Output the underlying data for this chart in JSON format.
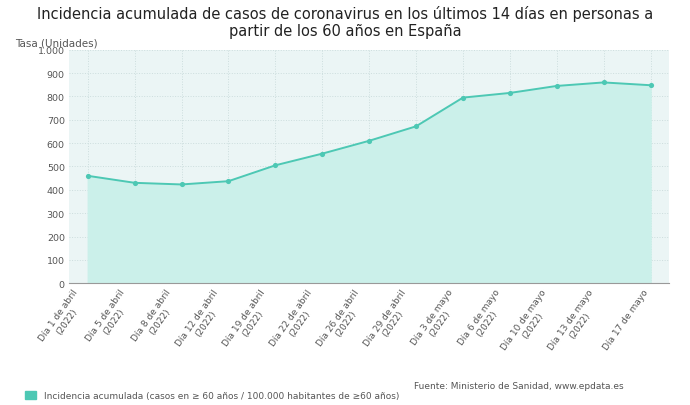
{
  "title": "Incidencia acumulada de casos de coronavirus en los últimos 14 días en personas a\npartir de los 60 años en España",
  "ylabel": "Tasa (Unidades)",
  "ylim": [
    0,
    1000
  ],
  "yticks": [
    0,
    100,
    200,
    300,
    400,
    500,
    600,
    700,
    800,
    900,
    1000
  ],
  "ytick_labels": [
    "0",
    "100",
    "200",
    "300",
    "400",
    "500",
    "600",
    "700",
    "800",
    "900",
    "1.000"
  ],
  "x_labels": [
    "Día 1 de abril\n(2022)",
    "Día 5 de abril\n(2022)",
    "Día 8 de abril\n(2022)",
    "Día 12 de abril\n(2022)",
    "Día 19 de abril\n(2022)",
    "Día 22 de abril\n(2022)",
    "Día 26 de abril\n(2022)",
    "Día 29 de abril\n(2022)",
    "Día 3 de mayo\n(2022)",
    "Día 6 de mayo\n(2022)",
    "Día 10 de mayo\n(2022)",
    "Día 13 de mayo\n(2022)",
    "Día 17 de mayo"
  ],
  "values": [
    460,
    430,
    423,
    437,
    505,
    555,
    610,
    672,
    795,
    815,
    845,
    860,
    848
  ],
  "line_color": "#4DC8B4",
  "marker_color": "#4DC8B4",
  "fill_color": "#CBF0EA",
  "background_color": "#EBF5F5",
  "grid_color": "#CCDDDD",
  "legend_label": "Incidencia acumulada (casos en ≥ 60 años / 100.000 habitantes de ≥60 años)",
  "source_text": "Fuente: Ministerio de Sanidad, www.epdata.es",
  "title_fontsize": 10.5,
  "axis_label_fontsize": 7.5,
  "tick_fontsize": 6.8,
  "legend_fontsize": 6.5
}
